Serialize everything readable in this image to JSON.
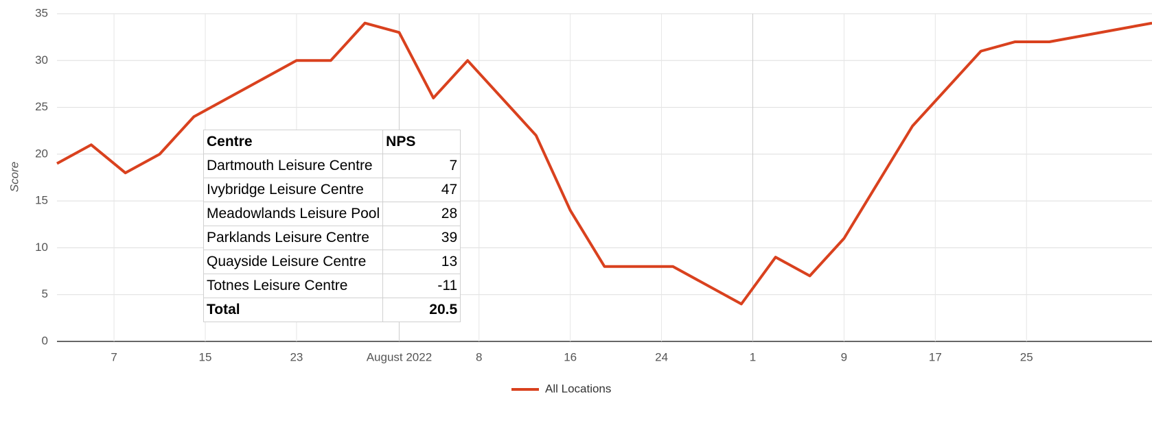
{
  "chart_data": {
    "type": "line",
    "y_label": "Score",
    "x": [
      "2022-07-02",
      "2022-07-05",
      "2022-07-08",
      "2022-07-11",
      "2022-07-14",
      "2022-07-23",
      "2022-07-26",
      "2022-07-29",
      "2022-08-01",
      "2022-08-04",
      "2022-08-07",
      "2022-08-13",
      "2022-08-16",
      "2022-08-19",
      "2022-08-25",
      "2022-08-31",
      "2022-09-03",
      "2022-09-06",
      "2022-09-09",
      "2022-09-15",
      "2022-09-21",
      "2022-09-24",
      "2022-09-27",
      "2022-10-06"
    ],
    "series": [
      {
        "name": "All Locations",
        "color": "#d9411e",
        "values": [
          19,
          21,
          18,
          20,
          24,
          30,
          30,
          34,
          33,
          26,
          30,
          22,
          14,
          8,
          8,
          4,
          9,
          7,
          11,
          23,
          31,
          32,
          32,
          34
        ]
      }
    ],
    "xlim": [
      "2022-07-02",
      "2022-10-06"
    ],
    "xticks": [
      {
        "value": "2022-07-07",
        "label": "7"
      },
      {
        "value": "2022-07-15",
        "label": "15"
      },
      {
        "value": "2022-07-23",
        "label": "23"
      },
      {
        "value": "2022-08-01",
        "label": "August 2022"
      },
      {
        "value": "2022-08-08",
        "label": "8"
      },
      {
        "value": "2022-08-16",
        "label": "16"
      },
      {
        "value": "2022-08-24",
        "label": "24"
      },
      {
        "value": "2022-09-01",
        "label": "1"
      },
      {
        "value": "2022-09-09",
        "label": "9"
      },
      {
        "value": "2022-09-17",
        "label": "17"
      },
      {
        "value": "2022-09-25",
        "label": "25"
      }
    ],
    "ylim": [
      0,
      35
    ],
    "yticks": [
      0,
      5,
      10,
      15,
      20,
      25,
      30,
      35
    ],
    "grid": true,
    "legend": "bottom"
  },
  "table": {
    "header": [
      "Centre",
      "NPS"
    ],
    "rows": [
      [
        "Dartmouth Leisure Centre",
        7
      ],
      [
        "Ivybridge Leisure Centre",
        47
      ],
      [
        "Meadowlands Leisure Pool",
        28
      ],
      [
        "Parklands Leisure Centre",
        39
      ],
      [
        "Quayside Leisure Centre",
        13
      ],
      [
        "Totnes Leisure Centre",
        -11
      ]
    ],
    "total": [
      "Total",
      20.5
    ]
  }
}
